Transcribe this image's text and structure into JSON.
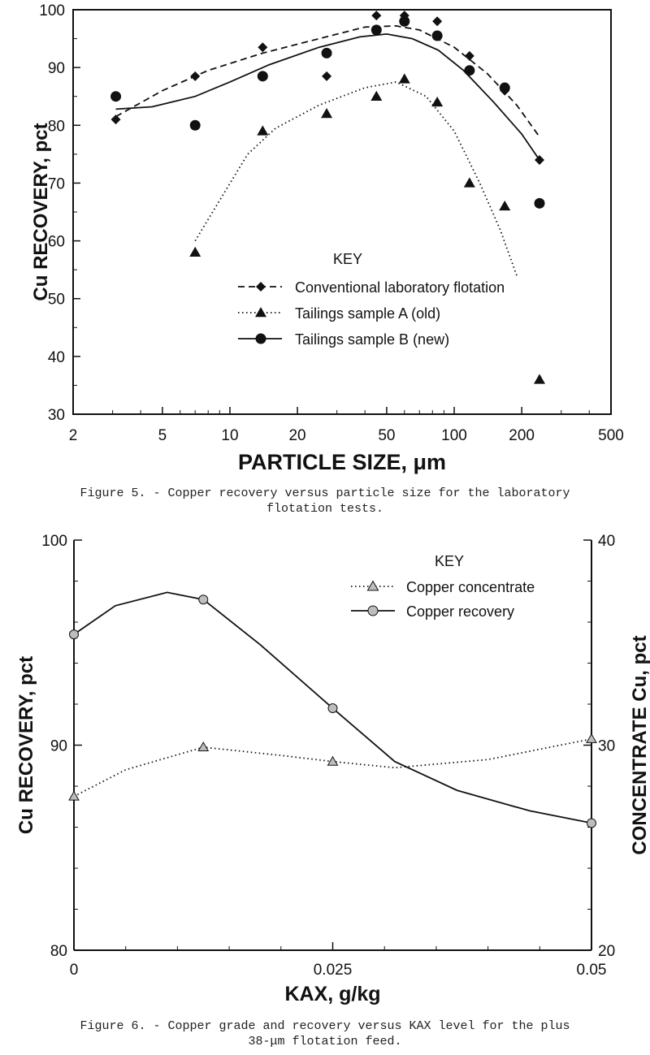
{
  "chart_data": [
    {
      "type": "scatter",
      "title": "",
      "xlabel": "PARTICLE SIZE, μm",
      "ylabel": "Cu RECOVERY, pct",
      "xscale": "log",
      "xlim": [
        2,
        500
      ],
      "ylim": [
        30,
        100
      ],
      "xticks": [
        "2",
        "5",
        "10",
        "20",
        "50",
        "100",
        "200",
        "500"
      ],
      "yticks": [
        "30",
        "40",
        "50",
        "60",
        "70",
        "80",
        "90",
        "100"
      ],
      "grid": false,
      "legend": {
        "title": "KEY",
        "placement": "center-bottom"
      },
      "series": [
        {
          "name": "Conventional laboratory flotation",
          "marker": "diamond",
          "line": "dashed",
          "points": [
            [
              3.1,
              81
            ],
            [
              7,
              88.5
            ],
            [
              14,
              93.5
            ],
            [
              27,
              88.5
            ],
            [
              45,
              99
            ],
            [
              60,
              99
            ],
            [
              84,
              98
            ],
            [
              117,
              92
            ],
            [
              168,
              86
            ],
            [
              240,
              74
            ]
          ],
          "curve": [
            [
              3.1,
              81.5
            ],
            [
              5,
              86
            ],
            [
              8,
              89.5
            ],
            [
              14,
              92.5
            ],
            [
              25,
              95
            ],
            [
              40,
              97
            ],
            [
              55,
              97.2
            ],
            [
              70,
              96.5
            ],
            [
              100,
              93.5
            ],
            [
              140,
              89
            ],
            [
              190,
              83.5
            ],
            [
              240,
              78
            ]
          ]
        },
        {
          "name": "Tailings sample A (old)",
          "marker": "triangle",
          "line": "dotted",
          "points": [
            [
              7,
              58
            ],
            [
              14,
              79
            ],
            [
              27,
              82
            ],
            [
              45,
              85
            ],
            [
              60,
              88
            ],
            [
              84,
              84
            ],
            [
              117,
              70
            ],
            [
              168,
              66
            ],
            [
              240,
              36
            ]
          ],
          "curve": [
            [
              7,
              60
            ],
            [
              9,
              67
            ],
            [
              12,
              75
            ],
            [
              16,
              79.5
            ],
            [
              25,
              83.5
            ],
            [
              40,
              86.5
            ],
            [
              55,
              87.5
            ],
            [
              75,
              85
            ],
            [
              100,
              79
            ],
            [
              130,
              70
            ],
            [
              160,
              62
            ],
            [
              190,
              54
            ]
          ]
        },
        {
          "name": "Tailings sample B (new)",
          "marker": "circle",
          "line": "solid",
          "points": [
            [
              3.1,
              85
            ],
            [
              7,
              80
            ],
            [
              14,
              88.5
            ],
            [
              27,
              92.5
            ],
            [
              45,
              96.5
            ],
            [
              60,
              98
            ],
            [
              84,
              95.5
            ],
            [
              117,
              89.5
            ],
            [
              168,
              86.5
            ],
            [
              240,
              66.5
            ]
          ],
          "curve": [
            [
              3.1,
              82.8
            ],
            [
              4.5,
              83.2
            ],
            [
              7,
              85
            ],
            [
              10,
              87.5
            ],
            [
              15,
              90.5
            ],
            [
              25,
              93.5
            ],
            [
              38,
              95.3
            ],
            [
              50,
              95.8
            ],
            [
              65,
              95
            ],
            [
              85,
              93
            ],
            [
              110,
              89.5
            ],
            [
              150,
              84
            ],
            [
              200,
              78.5
            ],
            [
              240,
              74
            ]
          ]
        }
      ]
    },
    {
      "type": "line",
      "title": "",
      "xlabel": "KAX, g/kg",
      "ylabel": "Cu RECOVERY, pct",
      "y2label": "CONCENTRATE Cu, pct",
      "xlim": [
        0,
        0.05
      ],
      "ylim": [
        80,
        100
      ],
      "y2lim": [
        20,
        40
      ],
      "xticks": [
        "0",
        "0.025",
        "0.05"
      ],
      "yticks": [
        "80",
        "90",
        "100"
      ],
      "y2ticks": [
        "20",
        "30",
        "40"
      ],
      "grid": false,
      "legend": {
        "title": "KEY",
        "placement": "top-right"
      },
      "series": [
        {
          "name": "Copper concentrate",
          "axis": "right",
          "marker": "triangle",
          "line": "dotted",
          "points": [
            [
              0,
              27.5
            ],
            [
              0.0125,
              29.9
            ],
            [
              0.025,
              29.2
            ],
            [
              0.05,
              30.3
            ]
          ],
          "curve": [
            [
              0,
              27.5
            ],
            [
              0.005,
              28.8
            ],
            [
              0.0125,
              29.9
            ],
            [
              0.02,
              29.5
            ],
            [
              0.025,
              29.2
            ],
            [
              0.031,
              28.9
            ],
            [
              0.04,
              29.3
            ],
            [
              0.05,
              30.3
            ]
          ]
        },
        {
          "name": "Copper recovery",
          "axis": "left",
          "marker": "circle",
          "line": "solid",
          "points": [
            [
              0,
              95.4
            ],
            [
              0.0125,
              97.1
            ],
            [
              0.025,
              91.8
            ],
            [
              0.05,
              86.2
            ]
          ],
          "curve": [
            [
              0,
              95.4
            ],
            [
              0.004,
              96.8
            ],
            [
              0.009,
              97.45
            ],
            [
              0.0125,
              97.1
            ],
            [
              0.018,
              94.9
            ],
            [
              0.025,
              91.8
            ],
            [
              0.031,
              89.2
            ],
            [
              0.037,
              87.8
            ],
            [
              0.044,
              86.8
            ],
            [
              0.05,
              86.2
            ]
          ]
        }
      ]
    }
  ],
  "captions": {
    "fig5_line1": "Figure  5. - Copper recovery versus particle size for the laboratory",
    "fig5_line2": "flotation tests.",
    "fig6_line1": "Figure  6. - Copper grade and recovery versus KAX level for the plus",
    "fig6_line2": "38-μm flotation feed."
  }
}
